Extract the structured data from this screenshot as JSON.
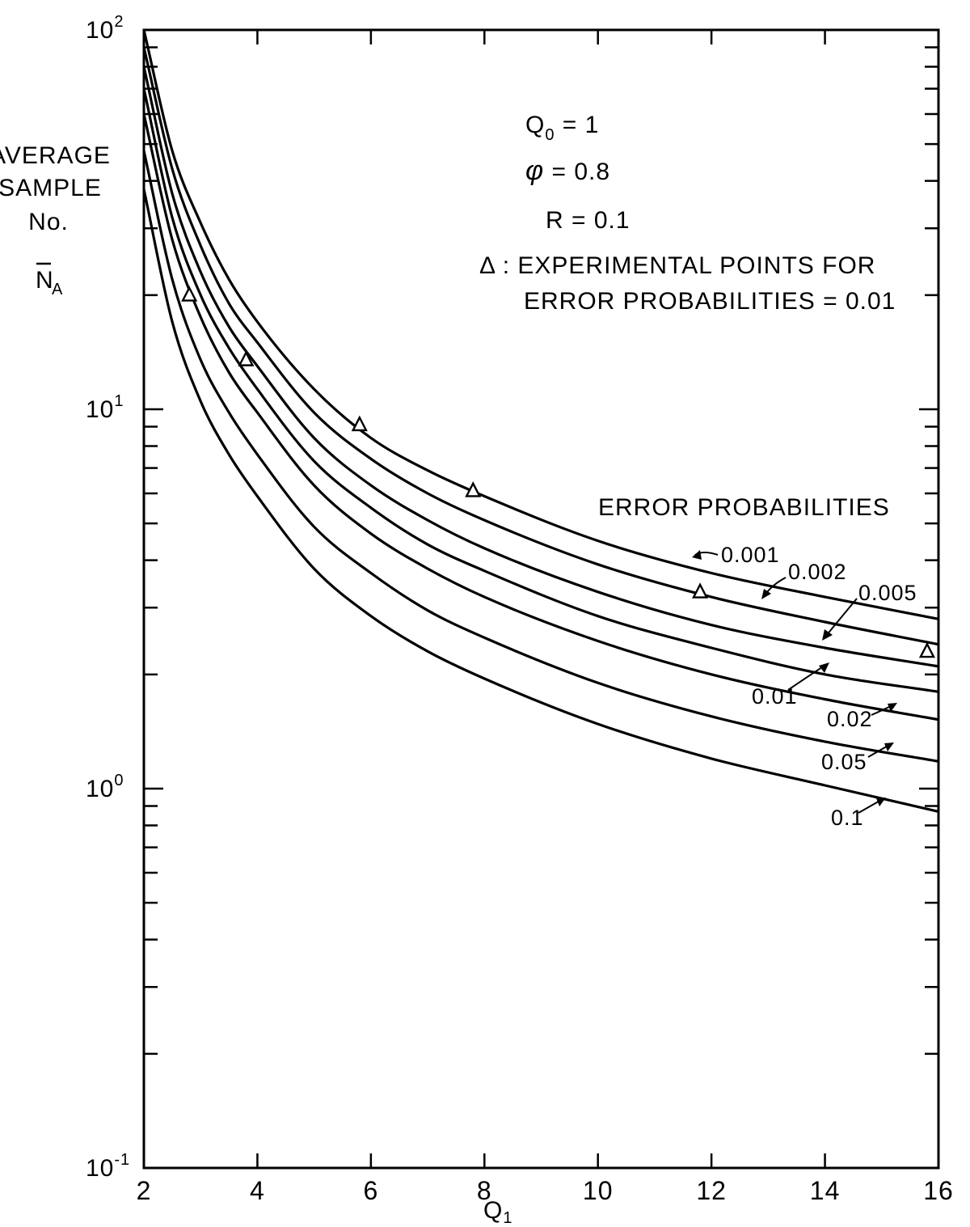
{
  "chart_data": {
    "type": "line",
    "title": "",
    "xlabel": "Q1",
    "ylabel": [
      "AVERAGE",
      "SAMPLE",
      "No.",
      "N",
      "A"
    ],
    "xlim": [
      2,
      16
    ],
    "ylim": [
      0.1,
      100
    ],
    "yscale": "log",
    "grid": false,
    "x_ticks": [
      "2",
      "4",
      "6",
      "8",
      "10",
      "12",
      "14",
      "16"
    ],
    "y_ticks": [
      {
        "base": "10",
        "exp": "-1",
        "value": 0.1
      },
      {
        "base": "10",
        "exp": "0",
        "value": 1
      },
      {
        "base": "10",
        "exp": "1",
        "value": 10
      },
      {
        "base": "10",
        "exp": "2",
        "value": 100
      }
    ],
    "annotations": {
      "q0": {
        "main": "Q",
        "sub": "0",
        "rest": " = 1"
      },
      "phi": {
        "symbol": "φ",
        "rest": " = 0.8"
      },
      "r": "R = 0.1",
      "legend_line1": "Δ : EXPERIMENTAL  POINTS  FOR",
      "legend_line2": "ERROR  PROBABILITIES = 0.01",
      "series_heading": "ERROR  PROBABILITIES"
    },
    "series": [
      {
        "name": "0.001",
        "x": [
          2,
          2.5,
          3,
          3.5,
          4,
          5,
          6,
          7,
          8,
          10,
          12,
          14,
          16
        ],
        "values": [
          100,
          48,
          31,
          22,
          17,
          11.3,
          8.4,
          6.9,
          5.9,
          4.5,
          3.7,
          3.2,
          2.8
        ]
      },
      {
        "name": "0.002",
        "x": [
          2,
          2.5,
          3,
          3.5,
          4,
          5,
          6,
          7,
          8,
          10,
          12,
          14,
          16
        ],
        "values": [
          90,
          43,
          27,
          19,
          15,
          9.8,
          7.4,
          6.0,
          5.1,
          3.9,
          3.2,
          2.75,
          2.4
        ]
      },
      {
        "name": "0.005",
        "x": [
          2,
          2.5,
          3,
          3.5,
          4,
          5,
          6,
          7,
          8,
          10,
          12,
          14,
          16
        ],
        "values": [
          80,
          37,
          23,
          16.5,
          13,
          8.4,
          6.3,
          5.1,
          4.3,
          3.3,
          2.7,
          2.35,
          2.1
        ]
      },
      {
        "name": "0.01",
        "x": [
          2,
          2.5,
          3,
          3.5,
          4,
          5,
          6,
          7,
          8,
          10,
          12,
          14,
          16
        ],
        "values": [
          70,
          32,
          20,
          14.5,
          11.3,
          7.3,
          5.5,
          4.4,
          3.75,
          2.85,
          2.35,
          2.0,
          1.8
        ]
      },
      {
        "name": "0.02",
        "x": [
          2,
          2.5,
          3,
          3.5,
          4,
          5,
          6,
          7,
          8,
          10,
          12,
          14,
          16
        ],
        "values": [
          60,
          28,
          17.5,
          12.5,
          9.8,
          6.3,
          4.7,
          3.8,
          3.2,
          2.45,
          2.0,
          1.72,
          1.52
        ]
      },
      {
        "name": "0.05",
        "x": [
          2,
          2.5,
          3,
          3.5,
          4,
          5,
          6,
          7,
          8,
          10,
          12,
          14,
          16
        ],
        "values": [
          48,
          22,
          13.5,
          9.8,
          7.6,
          4.9,
          3.7,
          2.95,
          2.5,
          1.9,
          1.55,
          1.33,
          1.18
        ]
      },
      {
        "name": "0.1",
        "x": [
          2,
          2.5,
          3,
          3.5,
          4,
          5,
          6,
          7,
          8,
          10,
          12,
          14,
          16
        ],
        "values": [
          38,
          17,
          10.5,
          7.6,
          5.9,
          3.8,
          2.85,
          2.3,
          1.95,
          1.48,
          1.2,
          1.02,
          0.87
        ]
      }
    ],
    "experimental_points": {
      "x": [
        2.8,
        3.8,
        5.8,
        7.8,
        11.8,
        15.8
      ],
      "values": [
        20,
        13.5,
        9.1,
        6.1,
        3.3,
        2.3
      ]
    }
  }
}
